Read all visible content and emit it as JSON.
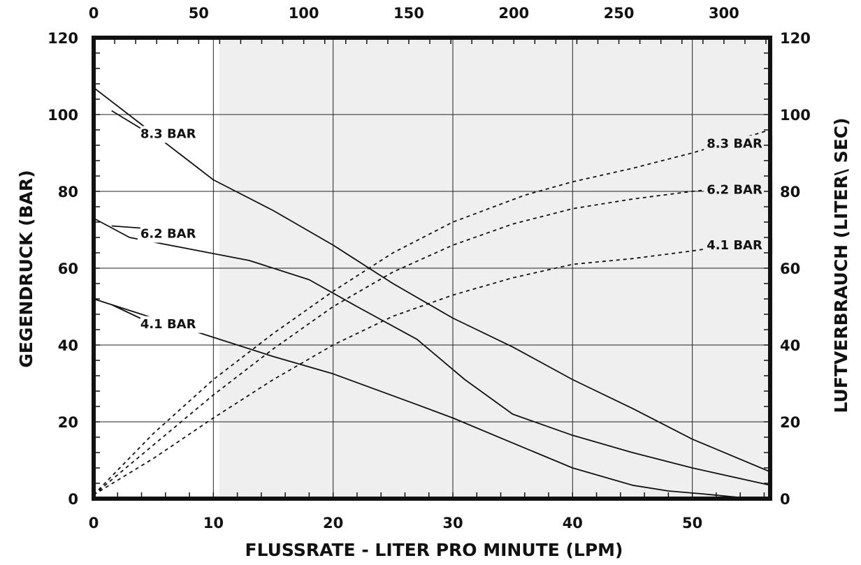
{
  "chart_data": {
    "type": "line",
    "xlabel": "FLUSSRATE - LITER PRO MINUTE (LPM)",
    "ylabel": "GEGENDRUCK (BAR)",
    "y2label": "LUFTVERBRAUCH  (LITER\\ SEC)",
    "xlim": [
      0,
      56.5
    ],
    "x_top_lim": [
      0,
      322
    ],
    "ylim": [
      0,
      120
    ],
    "y2lim": [
      0,
      120
    ],
    "x_ticks": [
      "0",
      "10",
      "20",
      "30",
      "40",
      "50"
    ],
    "x_top_ticks": [
      "0",
      "50",
      "100",
      "150",
      "200",
      "250",
      "300"
    ],
    "y_ticks": [
      "0",
      "20",
      "40",
      "60",
      "80",
      "100",
      "120"
    ],
    "y2_ticks": [
      "0",
      "20",
      "40",
      "60",
      "80",
      "100",
      "120"
    ],
    "grid": true,
    "shaded_region_x": [
      10.5,
      56.5
    ],
    "series": [
      {
        "name": "8.3 BAR",
        "axis": "pressure",
        "style": "solid",
        "x": [
          0,
          5,
          10,
          15,
          20,
          25,
          30,
          35,
          40,
          45,
          50,
          56.5
        ],
        "y": [
          107,
          95,
          83,
          75,
          66,
          56,
          47,
          39.5,
          31,
          23.5,
          15.5,
          7
        ]
      },
      {
        "name": "6.2 BAR",
        "axis": "pressure",
        "style": "solid",
        "x": [
          0,
          3,
          8,
          13,
          18,
          22,
          27,
          31,
          35,
          40,
          45,
          50,
          56.5
        ],
        "y": [
          73,
          68,
          65,
          62,
          57,
          50,
          41.5,
          31,
          22,
          16.5,
          12,
          8,
          3.5
        ]
      },
      {
        "name": "4.1 BAR",
        "axis": "pressure",
        "style": "solid",
        "x": [
          0,
          3,
          10,
          15,
          20,
          27,
          30,
          35,
          40,
          45,
          48,
          51,
          55
        ],
        "y": [
          52,
          49,
          42,
          37,
          32.5,
          24.5,
          21,
          14.5,
          8,
          3.5,
          2,
          1.2,
          0
        ]
      },
      {
        "name": "8.3 BAR",
        "axis": "air",
        "style": "dashed",
        "x": [
          0,
          5,
          10,
          15,
          20,
          25,
          30,
          36,
          40,
          45,
          50,
          56.5
        ],
        "y": [
          1,
          17,
          31,
          43,
          54,
          64,
          72,
          79,
          82.5,
          86,
          90,
          96
        ]
      },
      {
        "name": "6.2 BAR",
        "axis": "air",
        "style": "dashed",
        "x": [
          0,
          5,
          10,
          15,
          20,
          25,
          30,
          35,
          40,
          45,
          50,
          56.5
        ],
        "y": [
          1,
          14,
          27,
          39,
          50,
          59,
          66,
          71.5,
          75.5,
          78,
          80,
          82
        ]
      },
      {
        "name": "4.1 BAR",
        "axis": "air",
        "style": "dashed",
        "x": [
          0,
          5,
          10,
          15,
          20,
          25,
          30,
          35,
          40,
          45,
          50,
          56.5
        ],
        "y": [
          1,
          10.5,
          21,
          31,
          40,
          47.5,
          53,
          57.5,
          61,
          62.5,
          64.5,
          67.5
        ]
      }
    ],
    "annotations": [
      "8.3 BAR",
      "6.2 BAR",
      "4.1 BAR",
      "8.3 BAR",
      "6.2 BAR",
      "4.1 BAR"
    ]
  }
}
